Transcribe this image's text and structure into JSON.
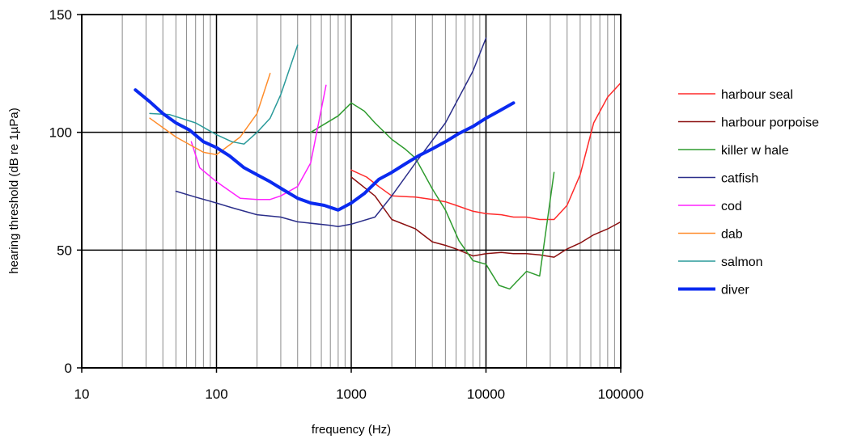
{
  "chart_data": {
    "type": "line",
    "title": "",
    "xlabel": "frequency (Hz)",
    "ylabel": "hearing threshold (dB re 1µPa)",
    "x_scale": "log",
    "xlim": [
      10,
      100000
    ],
    "ylim": [
      0,
      150
    ],
    "x_ticks": [
      "10",
      "100",
      "1000",
      "10000",
      "100000"
    ],
    "y_ticks": [
      "0",
      "50",
      "100",
      "150"
    ],
    "grid": "vertical minor log gridlines, horizontal major gridlines",
    "legend_position": "right",
    "series": [
      {
        "name": "harbour seal",
        "color": "#ff2a2a",
        "width": 1.5,
        "points": [
          [
            1000,
            84
          ],
          [
            1300,
            81
          ],
          [
            1600,
            77
          ],
          [
            2000,
            73
          ],
          [
            3000,
            72.5
          ],
          [
            4000,
            71.5
          ],
          [
            5000,
            70.5
          ],
          [
            6000,
            69
          ],
          [
            8000,
            66.5
          ],
          [
            10000,
            65.5
          ],
          [
            13000,
            65
          ],
          [
            16000,
            64
          ],
          [
            20000,
            64
          ],
          [
            25000,
            63
          ],
          [
            32000,
            63
          ],
          [
            40000,
            69
          ],
          [
            50000,
            82
          ],
          [
            63000,
            104
          ],
          [
            80000,
            115
          ],
          [
            100000,
            121
          ]
        ]
      },
      {
        "name": "harbour porpoise",
        "color": "#8b0f0f",
        "width": 1.5,
        "points": [
          [
            1000,
            81
          ],
          [
            1500,
            73
          ],
          [
            2000,
            63
          ],
          [
            3000,
            59
          ],
          [
            4000,
            53.5
          ],
          [
            5000,
            52
          ],
          [
            6000,
            50.5
          ],
          [
            8000,
            47.5
          ],
          [
            10000,
            48.5
          ],
          [
            13000,
            49
          ],
          [
            16000,
            48.5
          ],
          [
            20000,
            48.5
          ],
          [
            25000,
            48
          ],
          [
            32000,
            47
          ],
          [
            40000,
            50.5
          ],
          [
            50000,
            53
          ],
          [
            63000,
            56.5
          ],
          [
            80000,
            59
          ],
          [
            100000,
            62
          ]
        ]
      },
      {
        "name": "killer w hale",
        "color": "#2e9b2e",
        "width": 1.5,
        "points": [
          [
            500,
            100
          ],
          [
            800,
            107
          ],
          [
            1000,
            112.5
          ],
          [
            1250,
            109
          ],
          [
            1500,
            104
          ],
          [
            2000,
            97
          ],
          [
            2500,
            93
          ],
          [
            3000,
            89
          ],
          [
            4000,
            76
          ],
          [
            5000,
            67
          ],
          [
            6300,
            54
          ],
          [
            8000,
            45.5
          ],
          [
            10000,
            44
          ],
          [
            12500,
            35
          ],
          [
            15000,
            33.5
          ],
          [
            20000,
            41
          ],
          [
            25000,
            39
          ],
          [
            32000,
            83
          ]
        ]
      },
      {
        "name": "catfish",
        "color": "#2b2e8a",
        "width": 1.5,
        "points": [
          [
            50,
            75
          ],
          [
            70,
            72.5
          ],
          [
            100,
            70
          ],
          [
            130,
            68
          ],
          [
            200,
            65
          ],
          [
            300,
            64
          ],
          [
            400,
            62
          ],
          [
            700,
            60.5
          ],
          [
            800,
            60
          ],
          [
            1000,
            61
          ],
          [
            1500,
            64
          ],
          [
            2000,
            73
          ],
          [
            3000,
            87
          ],
          [
            5000,
            104
          ],
          [
            8000,
            126
          ],
          [
            10000,
            140
          ]
        ]
      },
      {
        "name": "cod",
        "color": "#ff22ff",
        "width": 1.5,
        "points": [
          [
            65,
            96
          ],
          [
            75,
            85
          ],
          [
            100,
            79
          ],
          [
            150,
            72
          ],
          [
            200,
            71.5
          ],
          [
            250,
            71.5
          ],
          [
            300,
            73
          ],
          [
            400,
            77
          ],
          [
            500,
            87
          ],
          [
            650,
            120
          ]
        ]
      },
      {
        "name": "dab",
        "color": "#ff8c2a",
        "width": 1.5,
        "points": [
          [
            32,
            106
          ],
          [
            50,
            98
          ],
          [
            80,
            91.5
          ],
          [
            100,
            90.5
          ],
          [
            150,
            98
          ],
          [
            200,
            108
          ],
          [
            250,
            125
          ]
        ]
      },
      {
        "name": "salmon",
        "color": "#2a9a9a",
        "width": 1.5,
        "points": [
          [
            32,
            108
          ],
          [
            45,
            107.5
          ],
          [
            70,
            104
          ],
          [
            100,
            99
          ],
          [
            130,
            96
          ],
          [
            160,
            95
          ],
          [
            200,
            100
          ],
          [
            250,
            106
          ],
          [
            300,
            116
          ],
          [
            400,
            137
          ]
        ]
      },
      {
        "name": "diver",
        "color": "#0a2af0",
        "width": 4,
        "points": [
          [
            25,
            118
          ],
          [
            32,
            113
          ],
          [
            40,
            108
          ],
          [
            50,
            104
          ],
          [
            63,
            101
          ],
          [
            80,
            96
          ],
          [
            100,
            93.5
          ],
          [
            125,
            90
          ],
          [
            160,
            85
          ],
          [
            200,
            82
          ],
          [
            250,
            79
          ],
          [
            315,
            75.5
          ],
          [
            400,
            72
          ],
          [
            500,
            70
          ],
          [
            630,
            69
          ],
          [
            800,
            67
          ],
          [
            1000,
            70
          ],
          [
            1250,
            74
          ],
          [
            1600,
            80
          ],
          [
            2000,
            83
          ],
          [
            2500,
            86.5
          ],
          [
            3150,
            90
          ],
          [
            4000,
            93
          ],
          [
            5000,
            96
          ],
          [
            6300,
            99.5
          ],
          [
            8000,
            102.5
          ],
          [
            10000,
            106
          ],
          [
            12500,
            109
          ],
          [
            16000,
            112.5
          ]
        ]
      }
    ]
  }
}
